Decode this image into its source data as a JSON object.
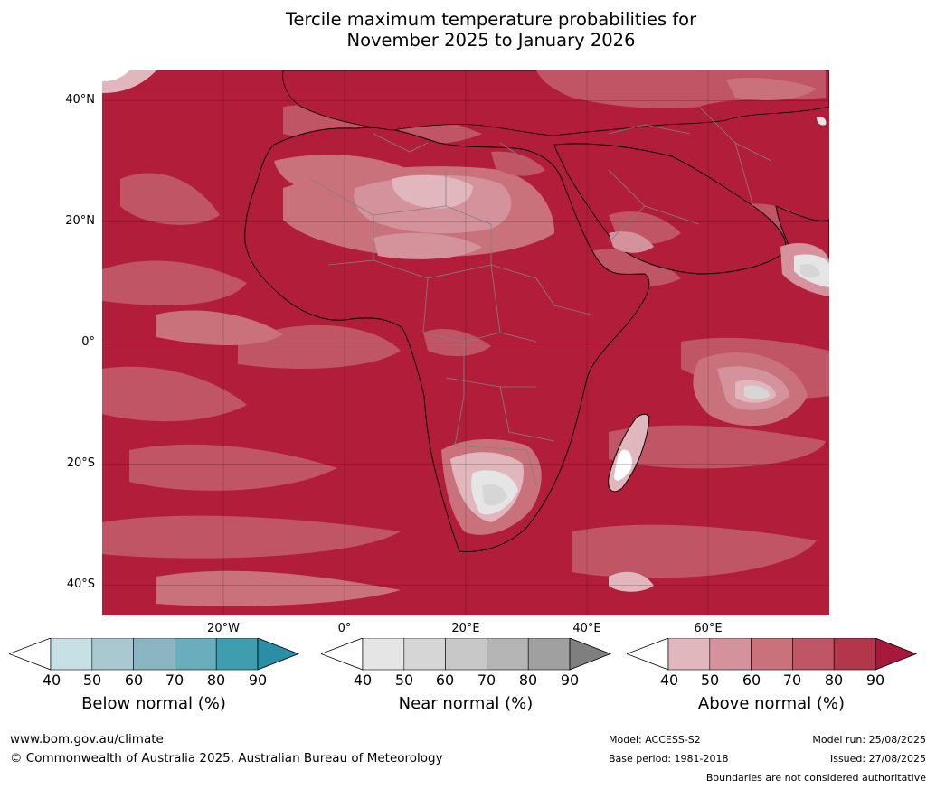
{
  "title_line1": "Tercile maximum temperature probabilities for",
  "title_line2": "November 2025 to January 2026",
  "map": {
    "lat_labels": [
      "40°N",
      "20°N",
      "0°",
      "20°S",
      "40°S"
    ],
    "lon_labels": [
      "20°W",
      "0°",
      "20°E",
      "40°E",
      "60°E"
    ],
    "lat_range": [
      -45,
      45
    ],
    "lon_range": [
      -30,
      60
    ],
    "sea_base_color": "#b21e3a",
    "land_border_color": "#000000",
    "country_border_color": "#808080"
  },
  "colorbars": [
    {
      "title": "Below normal (%)",
      "ticks": [
        "40",
        "50",
        "60",
        "70",
        "80",
        "90"
      ],
      "colors": [
        "#ffffff",
        "#c7e0e6",
        "#a9c8cf",
        "#8ab6c2",
        "#6aadbd",
        "#3f9db0",
        "#2a8fa6"
      ]
    },
    {
      "title": "Near normal (%)",
      "ticks": [
        "40",
        "50",
        "60",
        "70",
        "80",
        "90"
      ],
      "colors": [
        "#ffffff",
        "#e5e5e5",
        "#d6d6d6",
        "#c8c8c8",
        "#b5b5b5",
        "#a0a0a0",
        "#7f7f7f"
      ]
    },
    {
      "title": "Above normal (%)",
      "ticks": [
        "40",
        "50",
        "60",
        "70",
        "80",
        "90"
      ],
      "colors": [
        "#ffffff",
        "#e2b6bd",
        "#d4939c",
        "#c9727c",
        "#c05566",
        "#b3364a",
        "#a8183a"
      ]
    }
  ],
  "footer": {
    "website": "www.bom.gov.au/climate",
    "copyright": "© Commonwealth of Australia 2025, Australian Bureau of Meteorology",
    "model": "Model: ACCESS-S2",
    "base_period": "Base period: 1981-2018",
    "model_run": "Model run: 25/08/2025",
    "issued": "Issued: 27/08/2025",
    "disclaimer": "Boundaries are not considered authoritative"
  }
}
